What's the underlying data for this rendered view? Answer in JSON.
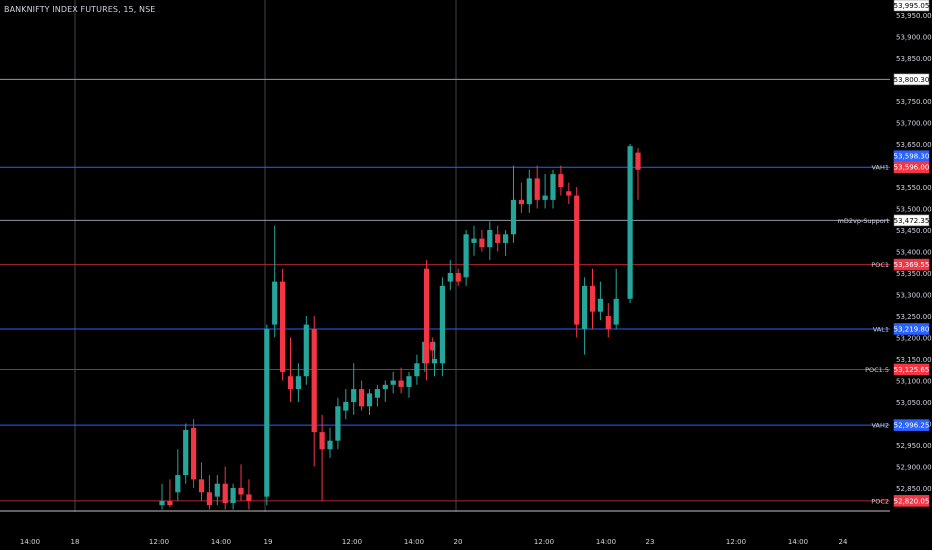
{
  "header": {
    "symbol_title": "BANKNIFTY INDEX FUTURES, 15, NSE"
  },
  "colors": {
    "background": "#000000",
    "up": "#26a69a",
    "down": "#f23645",
    "axis_text": "#d1d4dc",
    "vline": "#5d606b",
    "blue_line": "#2962ff",
    "red_line": "#b2242d",
    "white_line": "#9598a1",
    "label_blue": "#2962ff",
    "label_red": "#f23645",
    "label_white": "#ffffff"
  },
  "chart_data": {
    "type": "candlestick",
    "title": "BANKNIFTY INDEX FUTURES, 15, NSE",
    "y_axis": {
      "ticks": [
        53950,
        53900,
        53850,
        53750,
        53700,
        53650,
        53550,
        53500,
        53450,
        53400,
        53350,
        53300,
        53250,
        53200,
        53150,
        53100,
        53050,
        53000,
        52950,
        52900,
        52850
      ],
      "tick_labels": [
        "53,950.00",
        "53,900.00",
        "53,850.00",
        "53,750.00",
        "53,700.00",
        "53,650.00",
        "53,550.00",
        "53,500.00",
        "53,450.00",
        "53,400.00",
        "53,350.00",
        "53,300.00",
        "53,250.00",
        "53,200.00",
        "53,150.00",
        "53,100.00",
        "53,050.00",
        "53,000.00",
        "52,950.00",
        "52,900.00",
        "52,850.00"
      ],
      "range": [
        52800,
        53995
      ]
    },
    "x_axis": {
      "tick_labels": [
        "14:00",
        "18",
        "12:00",
        "14:00",
        "19",
        "12:00",
        "14:00",
        "20",
        "12:00",
        "14:00",
        "23",
        "12:00",
        "14:00",
        "24"
      ]
    },
    "levels": [
      {
        "name": "",
        "price": 53800.3,
        "label": "53,800.30",
        "style": "white"
      },
      {
        "name": "VAH1",
        "price": 53596.0,
        "label": "53,596.00",
        "style": "blue"
      },
      {
        "name": "mD2vp-Support",
        "price": 53472.35,
        "label": "53,472.35",
        "style": "white"
      },
      {
        "name": "POC1",
        "price": 53369.55,
        "label": "53,369.55",
        "style": "red"
      },
      {
        "name": "VAL1",
        "price": 53219.8,
        "label": "53,219.80",
        "style": "blue"
      },
      {
        "name": "POC1.5",
        "price": 53125.65,
        "label": "53,125.65",
        "style": "red"
      },
      {
        "name": "VAH2",
        "price": 52996.25,
        "label": "52,996.25",
        "style": "blue"
      },
      {
        "name": "POC2",
        "price": 52820.05,
        "label": "52,820.05",
        "style": "red"
      }
    ],
    "top_price_label": "53,995.05",
    "current_price_label": "53,598.30",
    "candles": [
      {
        "o": 52810,
        "h": 52860,
        "l": 52800,
        "c": 52820
      },
      {
        "o": 52820,
        "h": 52870,
        "l": 52805,
        "c": 52810
      },
      {
        "o": 52840,
        "h": 52940,
        "l": 52820,
        "c": 52880
      },
      {
        "o": 52880,
        "h": 53000,
        "l": 52860,
        "c": 52985
      },
      {
        "o": 52990,
        "h": 53010,
        "l": 52850,
        "c": 52870
      },
      {
        "o": 52870,
        "h": 52910,
        "l": 52820,
        "c": 52840
      },
      {
        "o": 52840,
        "h": 52880,
        "l": 52800,
        "c": 52810
      },
      {
        "o": 52830,
        "h": 52880,
        "l": 52810,
        "c": 52860
      },
      {
        "o": 52860,
        "h": 52900,
        "l": 52800,
        "c": 52815
      },
      {
        "o": 52815,
        "h": 52860,
        "l": 52800,
        "c": 52850
      },
      {
        "o": 52850,
        "h": 52905,
        "l": 52820,
        "c": 52835
      },
      {
        "o": 52835,
        "h": 52870,
        "l": 52800,
        "c": 52820
      },
      {
        "o": 52830,
        "h": 53230,
        "l": 52810,
        "c": 53220
      },
      {
        "o": 53230,
        "h": 53460,
        "l": 53200,
        "c": 53330
      },
      {
        "o": 53330,
        "h": 53360,
        "l": 53100,
        "c": 53120
      },
      {
        "o": 53110,
        "h": 53200,
        "l": 53050,
        "c": 53080
      },
      {
        "o": 53080,
        "h": 53140,
        "l": 53050,
        "c": 53110
      },
      {
        "o": 53110,
        "h": 53250,
        "l": 53090,
        "c": 53230
      },
      {
        "o": 53220,
        "h": 53250,
        "l": 52900,
        "c": 52980
      },
      {
        "o": 52980,
        "h": 53020,
        "l": 52820,
        "c": 52940
      },
      {
        "o": 52940,
        "h": 52990,
        "l": 52920,
        "c": 52960
      },
      {
        "o": 52960,
        "h": 53060,
        "l": 52940,
        "c": 53040
      },
      {
        "o": 53030,
        "h": 53080,
        "l": 53010,
        "c": 53050
      },
      {
        "o": 53050,
        "h": 53140,
        "l": 53020,
        "c": 53080
      },
      {
        "o": 53080,
        "h": 53100,
        "l": 53030,
        "c": 53040
      },
      {
        "o": 53040,
        "h": 53080,
        "l": 53020,
        "c": 53070
      },
      {
        "o": 53060,
        "h": 53090,
        "l": 53040,
        "c": 53080
      },
      {
        "o": 53080,
        "h": 53100,
        "l": 53050,
        "c": 53090
      },
      {
        "o": 53090,
        "h": 53120,
        "l": 53070,
        "c": 53100
      },
      {
        "o": 53100,
        "h": 53130,
        "l": 53070,
        "c": 53085
      },
      {
        "o": 53085,
        "h": 53120,
        "l": 53060,
        "c": 53110
      },
      {
        "o": 53110,
        "h": 53160,
        "l": 53090,
        "c": 53140
      },
      {
        "o": 53140,
        "h": 53240,
        "l": 53120,
        "c": 53190
      },
      {
        "o": 53190,
        "h": 53200,
        "l": 53140,
        "c": 53170
      },
      {
        "o": 53360,
        "h": 53380,
        "l": 53100,
        "c": 53140
      },
      {
        "o": 53140,
        "h": 53190,
        "l": 53110,
        "c": 53150
      },
      {
        "o": 53140,
        "h": 53340,
        "l": 53110,
        "c": 53320
      },
      {
        "o": 53330,
        "h": 53380,
        "l": 53310,
        "c": 53350
      },
      {
        "o": 53350,
        "h": 53360,
        "l": 53320,
        "c": 53330
      },
      {
        "o": 53340,
        "h": 53450,
        "l": 53320,
        "c": 53440
      },
      {
        "o": 53420,
        "h": 53460,
        "l": 53390,
        "c": 53430
      },
      {
        "o": 53430,
        "h": 53450,
        "l": 53400,
        "c": 53410
      },
      {
        "o": 53410,
        "h": 53470,
        "l": 53380,
        "c": 53450
      },
      {
        "o": 53440,
        "h": 53460,
        "l": 53400,
        "c": 53420
      },
      {
        "o": 53420,
        "h": 53450,
        "l": 53390,
        "c": 53440
      },
      {
        "o": 53440,
        "h": 53600,
        "l": 53420,
        "c": 53520
      },
      {
        "o": 53520,
        "h": 53560,
        "l": 53490,
        "c": 53510
      },
      {
        "o": 53510,
        "h": 53590,
        "l": 53490,
        "c": 53570
      },
      {
        "o": 53570,
        "h": 53600,
        "l": 53500,
        "c": 53520
      },
      {
        "o": 53520,
        "h": 53580,
        "l": 53500,
        "c": 53530
      },
      {
        "o": 53520,
        "h": 53590,
        "l": 53500,
        "c": 53580
      },
      {
        "o": 53580,
        "h": 53600,
        "l": 53530,
        "c": 53550
      },
      {
        "o": 53540,
        "h": 53560,
        "l": 53510,
        "c": 53530
      },
      {
        "o": 53530,
        "h": 53550,
        "l": 53200,
        "c": 53230
      },
      {
        "o": 53220,
        "h": 53340,
        "l": 53160,
        "c": 53320
      },
      {
        "o": 53320,
        "h": 53360,
        "l": 53220,
        "c": 53260
      },
      {
        "o": 53260,
        "h": 53330,
        "l": 53240,
        "c": 53290
      },
      {
        "o": 53250,
        "h": 53280,
        "l": 53200,
        "c": 53220
      },
      {
        "o": 53230,
        "h": 53360,
        "l": 53220,
        "c": 53290
      },
      {
        "o": 53290,
        "h": 53650,
        "l": 53280,
        "c": 53645
      },
      {
        "o": 53630,
        "h": 53640,
        "l": 53520,
        "c": 53590
      }
    ]
  }
}
